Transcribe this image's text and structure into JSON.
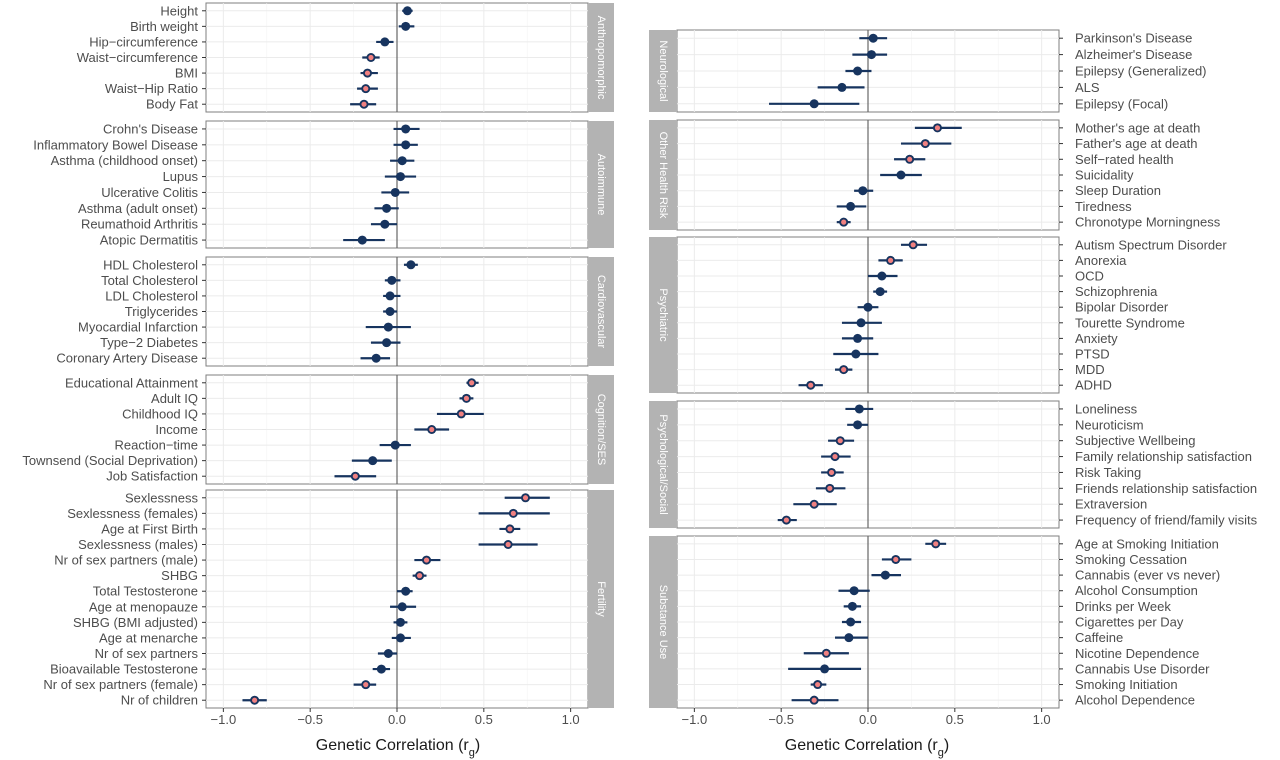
{
  "chart_data": {
    "type": "forest",
    "xlabel": "Genetic Correlation (r",
    "xlabel_sub": "g",
    "xlabel_close": ")",
    "xlim": [
      -1.1,
      1.1
    ],
    "xticks": [
      -1.0,
      -0.5,
      0.0,
      0.5,
      1.0
    ],
    "xtick_labels": [
      "−1.0",
      "−0.5",
      "0.0",
      "0.5",
      "1.0"
    ],
    "colors": {
      "significant": "#f08080",
      "nonsignificant": "#17345f",
      "line": "#17345f",
      "strip": "#b3b3b3",
      "zero": "#666666",
      "grid": "#ebebeb"
    },
    "panels": [
      {
        "column": "left",
        "facets": [
          {
            "name": "Anthropomorphic",
            "rows": [
              {
                "label": "Height",
                "est": 0.06,
                "lo": 0.03,
                "hi": 0.09,
                "sig": false
              },
              {
                "label": "Birth weight",
                "est": 0.05,
                "lo": 0.01,
                "hi": 0.1,
                "sig": false
              },
              {
                "label": "Hip−circumference",
                "est": -0.07,
                "lo": -0.12,
                "hi": -0.02,
                "sig": false
              },
              {
                "label": "Waist−circumference",
                "est": -0.15,
                "lo": -0.2,
                "hi": -0.1,
                "sig": true
              },
              {
                "label": "BMI",
                "est": -0.17,
                "lo": -0.21,
                "hi": -0.11,
                "sig": true
              },
              {
                "label": "Waist−Hip Ratio",
                "est": -0.18,
                "lo": -0.23,
                "hi": -0.11,
                "sig": true
              },
              {
                "label": "Body Fat",
                "est": -0.19,
                "lo": -0.27,
                "hi": -0.12,
                "sig": true
              }
            ]
          },
          {
            "name": "Autoimmune",
            "rows": [
              {
                "label": "Crohn's Disease",
                "est": 0.05,
                "lo": -0.02,
                "hi": 0.13,
                "sig": false
              },
              {
                "label": "Inflammatory Bowel Disease",
                "est": 0.05,
                "lo": -0.02,
                "hi": 0.12,
                "sig": false
              },
              {
                "label": "Asthma (childhood onset)",
                "est": 0.03,
                "lo": -0.04,
                "hi": 0.1,
                "sig": false
              },
              {
                "label": "Lupus",
                "est": 0.02,
                "lo": -0.07,
                "hi": 0.11,
                "sig": false
              },
              {
                "label": "Ulcerative Colitis",
                "est": -0.01,
                "lo": -0.09,
                "hi": 0.07,
                "sig": false
              },
              {
                "label": "Asthma (adult onset)",
                "est": -0.06,
                "lo": -0.13,
                "hi": 0.01,
                "sig": false
              },
              {
                "label": "Reumathoid Arthritis",
                "est": -0.07,
                "lo": -0.15,
                "hi": 0.0,
                "sig": false
              },
              {
                "label": "Atopic Dermatitis",
                "est": -0.2,
                "lo": -0.31,
                "hi": -0.07,
                "sig": false
              }
            ]
          },
          {
            "name": "Cardiovascular",
            "rows": [
              {
                "label": "HDL Cholesterol",
                "est": 0.08,
                "lo": 0.04,
                "hi": 0.12,
                "sig": false
              },
              {
                "label": "Total Cholesterol",
                "est": -0.03,
                "lo": -0.07,
                "hi": 0.02,
                "sig": false
              },
              {
                "label": "LDL Cholesterol",
                "est": -0.04,
                "lo": -0.08,
                "hi": 0.02,
                "sig": false
              },
              {
                "label": "Triglycerides",
                "est": -0.04,
                "lo": -0.08,
                "hi": 0.0,
                "sig": false
              },
              {
                "label": "Myocardial Infarction",
                "est": -0.05,
                "lo": -0.18,
                "hi": 0.08,
                "sig": false
              },
              {
                "label": "Type−2 Diabetes",
                "est": -0.06,
                "lo": -0.15,
                "hi": 0.02,
                "sig": false
              },
              {
                "label": "Coronary Artery Disease",
                "est": -0.12,
                "lo": -0.21,
                "hi": -0.04,
                "sig": false
              }
            ]
          },
          {
            "name": "Cognition/SES",
            "rows": [
              {
                "label": "Educational Attainment",
                "est": 0.43,
                "lo": 0.4,
                "hi": 0.47,
                "sig": true
              },
              {
                "label": "Adult IQ",
                "est": 0.4,
                "lo": 0.36,
                "hi": 0.44,
                "sig": true
              },
              {
                "label": "Childhood IQ",
                "est": 0.37,
                "lo": 0.23,
                "hi": 0.5,
                "sig": true
              },
              {
                "label": "Income",
                "est": 0.2,
                "lo": 0.1,
                "hi": 0.3,
                "sig": true
              },
              {
                "label": "Reaction−time",
                "est": -0.01,
                "lo": -0.1,
                "hi": 0.08,
                "sig": false
              },
              {
                "label": "Townsend (Social Deprivation)",
                "est": -0.14,
                "lo": -0.26,
                "hi": -0.03,
                "sig": false
              },
              {
                "label": "Job Satisfaction",
                "est": -0.24,
                "lo": -0.36,
                "hi": -0.12,
                "sig": true
              }
            ]
          },
          {
            "name": "Fertility",
            "rows": [
              {
                "label": "Sexlessness",
                "est": 0.74,
                "lo": 0.62,
                "hi": 0.88,
                "sig": true
              },
              {
                "label": "Sexlessness (females)",
                "est": 0.67,
                "lo": 0.47,
                "hi": 0.88,
                "sig": true
              },
              {
                "label": "Age at First Birth",
                "est": 0.65,
                "lo": 0.59,
                "hi": 0.71,
                "sig": true
              },
              {
                "label": "Sexlessness (males)",
                "est": 0.64,
                "lo": 0.47,
                "hi": 0.81,
                "sig": true
              },
              {
                "label": "Nr of sex partners (male)",
                "est": 0.17,
                "lo": 0.1,
                "hi": 0.25,
                "sig": true
              },
              {
                "label": "SHBG",
                "est": 0.13,
                "lo": 0.09,
                "hi": 0.17,
                "sig": true
              },
              {
                "label": "Total Testosterone",
                "est": 0.05,
                "lo": 0.0,
                "hi": 0.09,
                "sig": false
              },
              {
                "label": "Age at menopauze",
                "est": 0.03,
                "lo": -0.04,
                "hi": 0.11,
                "sig": false
              },
              {
                "label": "SHBG (BMI adjusted)",
                "est": 0.02,
                "lo": -0.02,
                "hi": 0.06,
                "sig": false
              },
              {
                "label": "Age at menarche",
                "est": 0.02,
                "lo": -0.03,
                "hi": 0.08,
                "sig": false
              },
              {
                "label": "Nr of sex partners",
                "est": -0.05,
                "lo": -0.11,
                "hi": 0.0,
                "sig": false
              },
              {
                "label": "Bioavailable Testosterone",
                "est": -0.09,
                "lo": -0.14,
                "hi": -0.04,
                "sig": false
              },
              {
                "label": "Nr of sex partners (female)",
                "est": -0.18,
                "lo": -0.25,
                "hi": -0.12,
                "sig": true
              },
              {
                "label": "Nr of children",
                "est": -0.82,
                "lo": -0.89,
                "hi": -0.75,
                "sig": true
              }
            ]
          }
        ]
      },
      {
        "column": "right",
        "facets": [
          {
            "name": "Neurological",
            "rows": [
              {
                "label": "Parkinson's Disease",
                "est": 0.03,
                "lo": -0.05,
                "hi": 0.11,
                "sig": false
              },
              {
                "label": "Alzheimer's Disease",
                "est": 0.02,
                "lo": -0.09,
                "hi": 0.11,
                "sig": false
              },
              {
                "label": "Epilepsy (Generalized)",
                "est": -0.06,
                "lo": -0.13,
                "hi": 0.02,
                "sig": false
              },
              {
                "label": "ALS",
                "est": -0.15,
                "lo": -0.29,
                "hi": -0.02,
                "sig": false
              },
              {
                "label": "Epilepsy (Focal)",
                "est": -0.31,
                "lo": -0.57,
                "hi": -0.05,
                "sig": false
              }
            ]
          },
          {
            "name": "Other Health Risk",
            "rows": [
              {
                "label": "Mother's age at death",
                "est": 0.4,
                "lo": 0.27,
                "hi": 0.54,
                "sig": true
              },
              {
                "label": "Father's age at death",
                "est": 0.33,
                "lo": 0.19,
                "hi": 0.48,
                "sig": true
              },
              {
                "label": "Self−rated health",
                "est": 0.24,
                "lo": 0.15,
                "hi": 0.33,
                "sig": true
              },
              {
                "label": "Suicidality",
                "est": 0.19,
                "lo": 0.07,
                "hi": 0.31,
                "sig": false
              },
              {
                "label": "Sleep Duration",
                "est": -0.03,
                "lo": -0.08,
                "hi": 0.03,
                "sig": false
              },
              {
                "label": "Tiredness",
                "est": -0.1,
                "lo": -0.18,
                "hi": -0.01,
                "sig": false
              },
              {
                "label": "Chronotype Morningness",
                "est": -0.14,
                "lo": -0.18,
                "hi": -0.1,
                "sig": true
              }
            ]
          },
          {
            "name": "Psychiatric",
            "rows": [
              {
                "label": "Autism Spectrum Disorder",
                "est": 0.26,
                "lo": 0.19,
                "hi": 0.34,
                "sig": true
              },
              {
                "label": "Anorexia",
                "est": 0.13,
                "lo": 0.06,
                "hi": 0.2,
                "sig": true
              },
              {
                "label": "OCD",
                "est": 0.08,
                "lo": 0.0,
                "hi": 0.17,
                "sig": false
              },
              {
                "label": "Schizophrenia",
                "est": 0.07,
                "lo": 0.03,
                "hi": 0.11,
                "sig": false
              },
              {
                "label": "Bipolar Disorder",
                "est": 0.0,
                "lo": -0.06,
                "hi": 0.06,
                "sig": false
              },
              {
                "label": "Tourette Syndrome",
                "est": -0.04,
                "lo": -0.15,
                "hi": 0.08,
                "sig": false
              },
              {
                "label": "Anxiety",
                "est": -0.06,
                "lo": -0.15,
                "hi": 0.03,
                "sig": false
              },
              {
                "label": "PTSD",
                "est": -0.07,
                "lo": -0.2,
                "hi": 0.06,
                "sig": false
              },
              {
                "label": "MDD",
                "est": -0.14,
                "lo": -0.19,
                "hi": -0.09,
                "sig": true
              },
              {
                "label": "ADHD",
                "est": -0.33,
                "lo": -0.4,
                "hi": -0.26,
                "sig": true
              }
            ]
          },
          {
            "name": "Psychological/Social",
            "rows": [
              {
                "label": "Loneliness",
                "est": -0.05,
                "lo": -0.13,
                "hi": 0.03,
                "sig": false
              },
              {
                "label": "Neuroticism",
                "est": -0.06,
                "lo": -0.12,
                "hi": 0.0,
                "sig": false
              },
              {
                "label": "Subjective Wellbeing",
                "est": -0.16,
                "lo": -0.23,
                "hi": -0.08,
                "sig": true
              },
              {
                "label": "Family relationship satisfaction",
                "est": -0.19,
                "lo": -0.27,
                "hi": -0.1,
                "sig": true
              },
              {
                "label": "Risk Taking",
                "est": -0.21,
                "lo": -0.27,
                "hi": -0.14,
                "sig": true
              },
              {
                "label": "Friends relationship satisfaction",
                "est": -0.22,
                "lo": -0.3,
                "hi": -0.13,
                "sig": true
              },
              {
                "label": "Extraversion",
                "est": -0.31,
                "lo": -0.43,
                "hi": -0.18,
                "sig": true
              },
              {
                "label": "Frequency of friend/family visits",
                "est": -0.47,
                "lo": -0.52,
                "hi": -0.41,
                "sig": true
              }
            ]
          },
          {
            "name": "Substance Use",
            "rows": [
              {
                "label": "Age at Smoking Initiation",
                "est": 0.39,
                "lo": 0.33,
                "hi": 0.45,
                "sig": true
              },
              {
                "label": "Smoking Cessation",
                "est": 0.16,
                "lo": 0.08,
                "hi": 0.25,
                "sig": true
              },
              {
                "label": "Cannabis (ever vs never)",
                "est": 0.1,
                "lo": 0.02,
                "hi": 0.19,
                "sig": false
              },
              {
                "label": "Alcohol Consumption",
                "est": -0.08,
                "lo": -0.17,
                "hi": 0.01,
                "sig": false
              },
              {
                "label": "Drinks per Week",
                "est": -0.09,
                "lo": -0.14,
                "hi": -0.04,
                "sig": false
              },
              {
                "label": "Cigarettes per Day",
                "est": -0.1,
                "lo": -0.15,
                "hi": -0.04,
                "sig": false
              },
              {
                "label": "Caffeine",
                "est": -0.11,
                "lo": -0.19,
                "hi": 0.0,
                "sig": false
              },
              {
                "label": "Nicotine Dependence",
                "est": -0.24,
                "lo": -0.37,
                "hi": -0.11,
                "sig": true
              },
              {
                "label": "Cannabis Use Disorder",
                "est": -0.25,
                "lo": -0.46,
                "hi": -0.04,
                "sig": false
              },
              {
                "label": "Smoking Initiation",
                "est": -0.29,
                "lo": -0.33,
                "hi": -0.24,
                "sig": true
              },
              {
                "label": "Alcohol Dependence",
                "est": -0.31,
                "lo": -0.44,
                "hi": -0.17,
                "sig": true
              }
            ]
          }
        ]
      }
    ]
  }
}
